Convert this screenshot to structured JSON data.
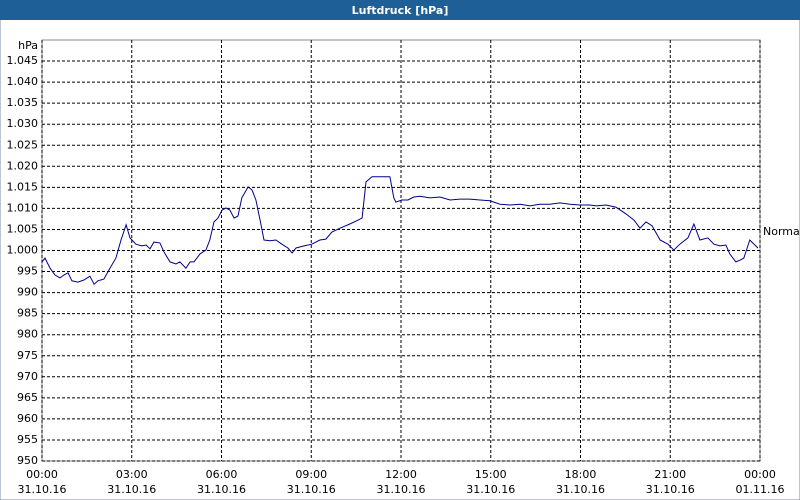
{
  "chart_data": {
    "type": "line",
    "title": "Luftdruck [hPa]",
    "y_label": "hPa",
    "grid": true,
    "xlim": [
      0,
      24
    ],
    "ylim": [
      950,
      1050
    ],
    "xticks": [
      {
        "value": 0,
        "label": "00:00"
      },
      {
        "value": 3,
        "label": "03:00"
      },
      {
        "value": 6,
        "label": "06:00"
      },
      {
        "value": 9,
        "label": "09:00"
      },
      {
        "value": 12,
        "label": "12:00"
      },
      {
        "value": 15,
        "label": "15:00"
      },
      {
        "value": 18,
        "label": "18:00"
      },
      {
        "value": 21,
        "label": "21:00"
      },
      {
        "value": 24,
        "label": "00:00"
      }
    ],
    "xtick_dates": [
      "31.10.16",
      "31.10.16",
      "31.10.16",
      "31.10.16",
      "31.10.16",
      "31.10.16",
      "31.10.16",
      "31.10.16",
      "01.11.16"
    ],
    "yticks": [
      950,
      955,
      960,
      965,
      970,
      975,
      980,
      985,
      990,
      995,
      {
        "value": 1000,
        "label": "1.000"
      },
      {
        "value": 1005,
        "label": "1.005"
      },
      {
        "value": 1010,
        "label": "1.010"
      },
      {
        "value": 1015,
        "label": "1.015"
      },
      {
        "value": 1020,
        "label": "1.020"
      },
      {
        "value": 1025,
        "label": "1.025"
      },
      {
        "value": 1030,
        "label": "1.030"
      },
      {
        "value": 1035,
        "label": "1.035"
      },
      {
        "value": 1040,
        "label": "1.040"
      },
      {
        "value": 1045,
        "label": "1.045"
      }
    ],
    "x": [
      0,
      0.1,
      0.27,
      0.43,
      0.6,
      0.74,
      0.87,
      1.0,
      1.2,
      1.4,
      1.6,
      1.74,
      1.87,
      2.07,
      2.27,
      2.47,
      2.64,
      2.81,
      2.94,
      3.14,
      3.34,
      3.48,
      3.61,
      3.74,
      3.94,
      4.08,
      4.28,
      4.48,
      4.61,
      4.81,
      4.95,
      5.08,
      5.28,
      5.48,
      5.61,
      5.75,
      5.88,
      6.02,
      6.15,
      6.28,
      6.42,
      6.55,
      6.68,
      6.89,
      7.02,
      7.15,
      7.29,
      7.42,
      7.62,
      7.82,
      8.02,
      8.22,
      8.36,
      8.49,
      8.76,
      9.02,
      9.29,
      9.49,
      9.69,
      9.96,
      10.29,
      10.56,
      10.7,
      10.83,
      11.03,
      11.3,
      11.63,
      11.76,
      11.83,
      12.03,
      12.23,
      12.43,
      12.63,
      12.97,
      13.3,
      13.64,
      13.97,
      14.3,
      14.64,
      14.97,
      15.31,
      15.64,
      15.98,
      16.31,
      16.64,
      16.98,
      17.31,
      17.65,
      17.98,
      18.32,
      18.52,
      18.85,
      19.18,
      19.52,
      19.79,
      19.99,
      20.19,
      20.39,
      20.66,
      20.92,
      21.12,
      21.32,
      21.59,
      21.79,
      21.99,
      22.26,
      22.46,
      22.66,
      22.86,
      22.99,
      23.19,
      23.33,
      23.46,
      23.66,
      23.86,
      23.93
    ],
    "series": [
      {
        "name": "Normal",
        "color": "#00008b",
        "values": [
          997.3,
          998.2,
          995.8,
          994.2,
          993.5,
          994.2,
          994.7,
          992.8,
          992.5,
          993.0,
          993.9,
          992.0,
          992.8,
          993.2,
          995.8,
          998.2,
          1002.5,
          1006.1,
          1003.0,
          1001.5,
          1001.1,
          1001.3,
          1000.4,
          1002.0,
          1001.8,
          999.6,
          997.3,
          996.8,
          997.3,
          995.8,
          997.3,
          997.3,
          999.2,
          1000.1,
          1002.5,
          1006.8,
          1007.7,
          1009.6,
          1010.1,
          1009.6,
          1007.7,
          1008.2,
          1012.5,
          1015.1,
          1014.4,
          1012.0,
          1007.2,
          1002.5,
          1002.3,
          1002.5,
          1001.5,
          1000.6,
          999.4,
          1000.6,
          1001.1,
          1001.5,
          1002.5,
          1002.7,
          1004.4,
          1005.3,
          1006.3,
          1007.2,
          1007.7,
          1016.3,
          1017.5,
          1017.5,
          1017.5,
          1012.5,
          1011.5,
          1012.0,
          1012.0,
          1012.7,
          1012.9,
          1012.5,
          1012.7,
          1012.0,
          1012.2,
          1012.2,
          1012.0,
          1011.8,
          1011.0,
          1010.8,
          1011.0,
          1010.6,
          1011.0,
          1011.0,
          1011.3,
          1011.0,
          1010.8,
          1010.8,
          1010.6,
          1010.8,
          1010.3,
          1008.7,
          1007.2,
          1005.3,
          1006.8,
          1005.9,
          1002.5,
          1001.5,
          1000.1,
          1001.5,
          1003.0,
          1006.3,
          1002.5,
          1003.0,
          1001.5,
          1001.1,
          1001.3,
          999.2,
          997.3,
          997.7,
          998.2,
          1002.5,
          1001.1,
          1000.6
        ]
      }
    ]
  }
}
